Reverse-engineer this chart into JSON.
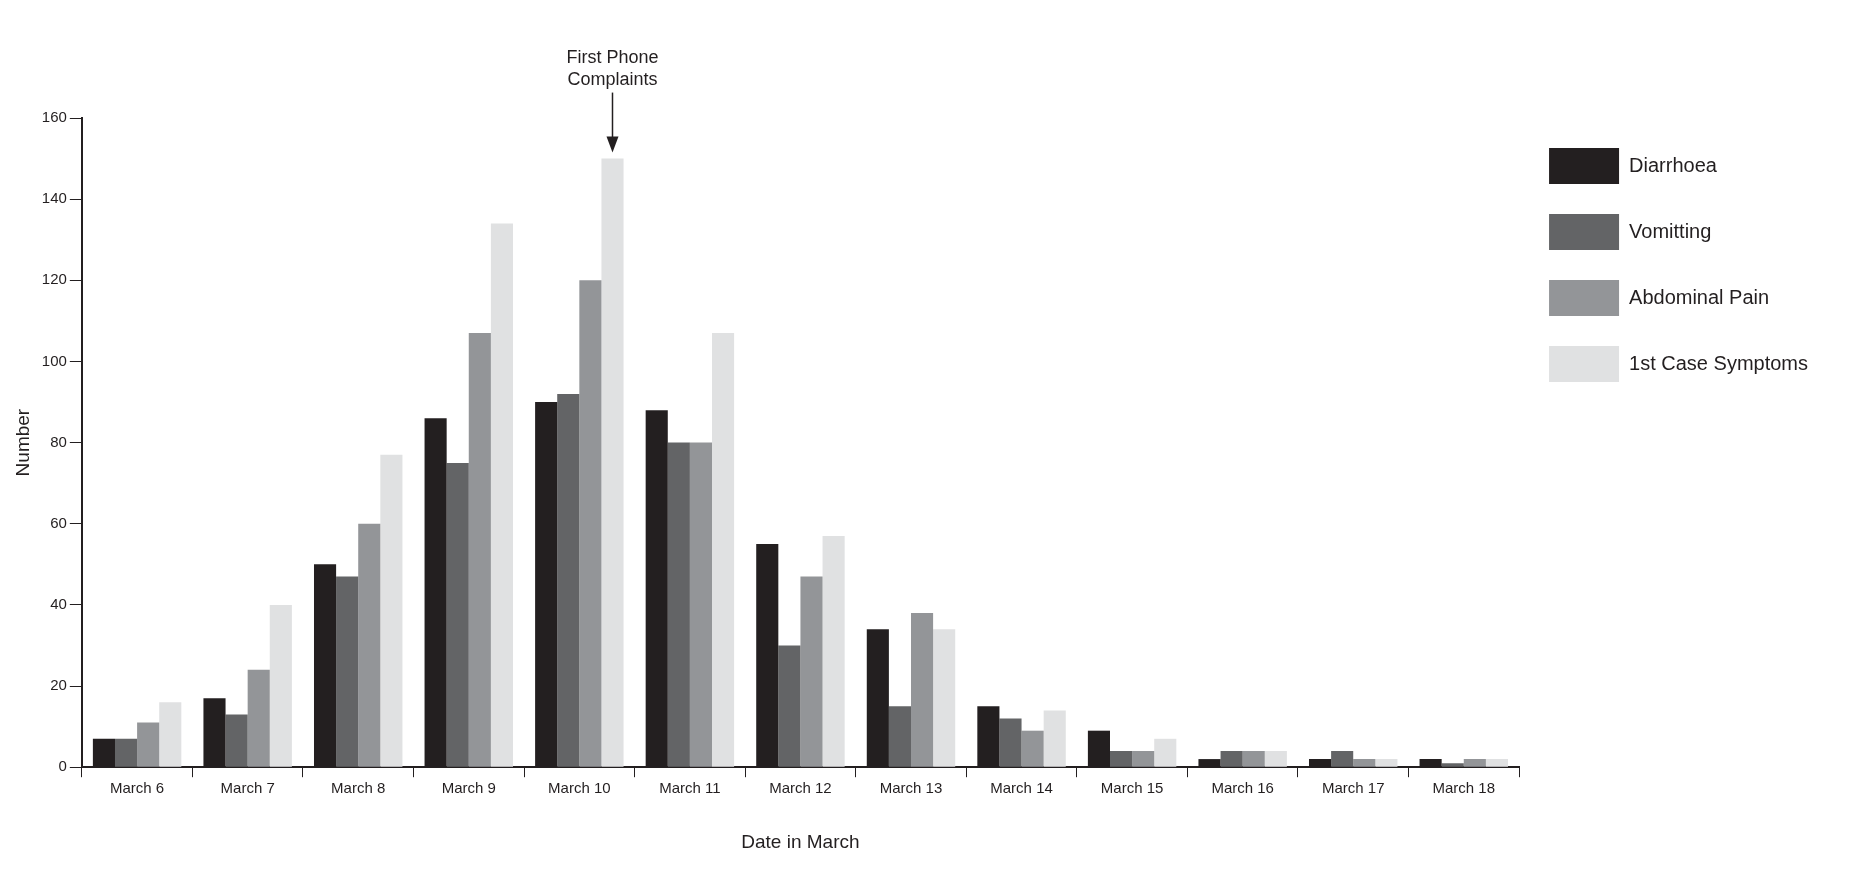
{
  "chart_data": {
    "type": "bar",
    "categories": [
      "March 6",
      "March 7",
      "March 8",
      "March 9",
      "March 10",
      "March 11",
      "March 12",
      "March 13",
      "March 14",
      "March 15",
      "March 16",
      "March 17",
      "March 18"
    ],
    "series": [
      {
        "name": "Diarrhoea",
        "color": "#231f20",
        "values": [
          7,
          17,
          50,
          86,
          90,
          88,
          55,
          34,
          15,
          9,
          2,
          2,
          2
        ]
      },
      {
        "name": "Vomitting",
        "color": "#636466",
        "values": [
          7,
          13,
          47,
          75,
          92,
          80,
          30,
          15,
          12,
          4,
          4,
          4,
          1
        ]
      },
      {
        "name": "Abdominal Pain",
        "color": "#939598",
        "values": [
          11,
          24,
          60,
          107,
          120,
          80,
          47,
          38,
          9,
          4,
          4,
          2,
          2
        ]
      },
      {
        "name": "1st Case Symptoms",
        "color": "#e0e1e2",
        "values": [
          16,
          40,
          77,
          134,
          150,
          107,
          57,
          34,
          14,
          7,
          4,
          2,
          2
        ]
      }
    ],
    "xlabel": "Date in March",
    "ylabel": "Number",
    "ylim": [
      0,
      160
    ],
    "yticks": [
      0,
      20,
      40,
      60,
      80,
      100,
      120,
      140,
      160
    ],
    "annotations": [
      "First Phone Complaints"
    ],
    "legend": "top right",
    "grid": false
  }
}
